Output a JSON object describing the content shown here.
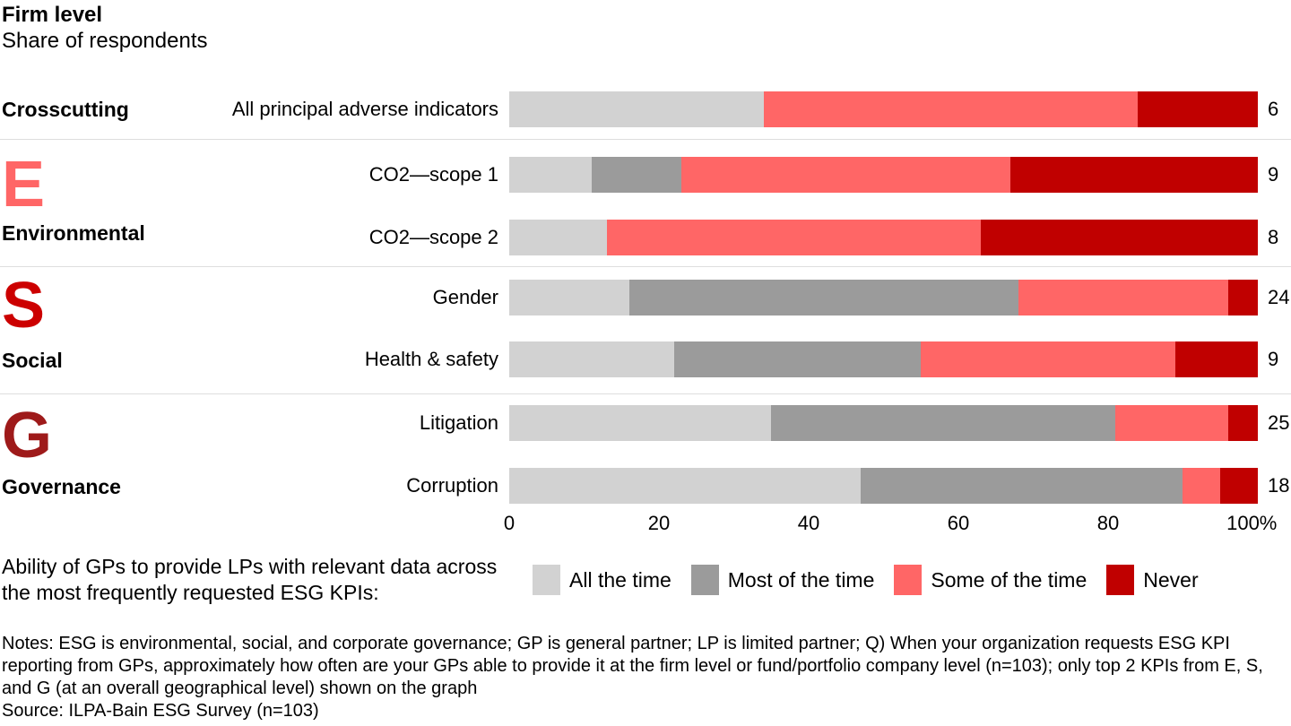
{
  "header": {
    "title": "Firm level",
    "subtitle": "Share of respondents"
  },
  "colors": {
    "all_the_time": "#d2d2d2",
    "most_of_the_time": "#9b9b9b",
    "some_of_the_time": "#ff6666",
    "never": "#c00000",
    "letter_e": "#ff6666",
    "letter_s": "#cc0000",
    "letter_g": "#9e1a1a",
    "separator": "#dedede"
  },
  "chart_data": {
    "type": "bar",
    "orientation": "horizontal",
    "stacked": true,
    "unit": "percent",
    "series_order": [
      "all_the_time",
      "most_of_the_time",
      "some_of_the_time",
      "never"
    ],
    "legend": [
      "All the time",
      "Most of the time",
      "Some of the time",
      "Never"
    ],
    "x_axis": {
      "min": 0,
      "max": 100,
      "ticks": [
        {
          "value": 0,
          "label": "0"
        },
        {
          "value": 20,
          "label": "20"
        },
        {
          "value": 40,
          "label": "40"
        },
        {
          "value": 60,
          "label": "60"
        },
        {
          "value": 80,
          "label": "80"
        },
        {
          "value": 100,
          "label": "100%"
        }
      ]
    },
    "groups": [
      {
        "name": "Crosscutting",
        "letter": ""
      },
      {
        "name": "Environmental",
        "letter": "E"
      },
      {
        "name": "Social",
        "letter": "S"
      },
      {
        "name": "Governance",
        "letter": "G"
      }
    ],
    "rows": [
      {
        "group": "Crosscutting",
        "label": "All principal adverse indicators",
        "values": {
          "all_the_time": 34,
          "most_of_the_time": 0,
          "some_of_the_time": 50,
          "never": 16
        },
        "value_label": "6"
      },
      {
        "group": "Environmental",
        "label": "CO2—scope 1",
        "values": {
          "all_the_time": 11,
          "most_of_the_time": 12,
          "some_of_the_time": 44,
          "never": 33
        },
        "value_label": "9"
      },
      {
        "group": "Environmental",
        "label": "CO2—scope 2",
        "values": {
          "all_the_time": 13,
          "most_of_the_time": 0,
          "some_of_the_time": 50,
          "never": 37
        },
        "value_label": "8"
      },
      {
        "group": "Social",
        "label": "Gender",
        "values": {
          "all_the_time": 16,
          "most_of_the_time": 52,
          "some_of_the_time": 28,
          "never": 4
        },
        "value_label": "24"
      },
      {
        "group": "Social",
        "label": "Health & safety",
        "values": {
          "all_the_time": 22,
          "most_of_the_time": 33,
          "some_of_the_time": 34,
          "never": 11
        },
        "value_label": "9"
      },
      {
        "group": "Governance",
        "label": "Litigation",
        "values": {
          "all_the_time": 35,
          "most_of_the_time": 46,
          "some_of_the_time": 15,
          "never": 4
        },
        "value_label": "25"
      },
      {
        "group": "Governance",
        "label": "Corruption",
        "values": {
          "all_the_time": 47,
          "most_of_the_time": 43,
          "some_of_the_time": 5,
          "never": 5
        },
        "value_label": "18"
      }
    ]
  },
  "caption": {
    "text": "Ability of GPs to provide LPs with relevant data across the most frequently requested ESG KPIs:"
  },
  "legend": {
    "items": [
      {
        "label": "All the time",
        "color_key": "all_the_time"
      },
      {
        "label": "Most of the time",
        "color_key": "most_of_the_time"
      },
      {
        "label": "Some of the time",
        "color_key": "some_of_the_time"
      },
      {
        "label": "Never",
        "color_key": "never"
      }
    ]
  },
  "footer": {
    "notes": "Notes: ESG is environmental, social, and corporate governance; GP is general partner; LP is limited partner; Q) When your organization requests ESG KPI reporting from GPs, approximately how often are your GPs able to provide it at the firm level or fund/portfolio company level (n=103); only top 2 KPIs from E, S, and G (at an overall geographical level) shown on the graph",
    "source": "Source: ILPA-Bain ESG Survey (n=103)"
  }
}
